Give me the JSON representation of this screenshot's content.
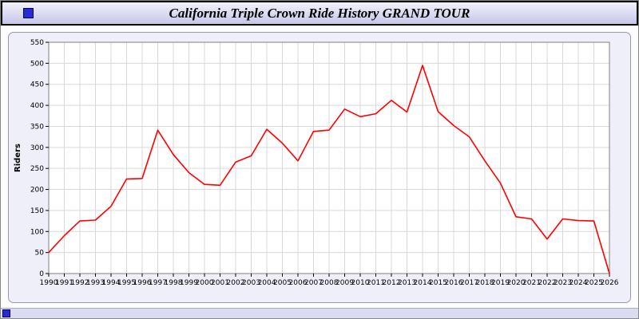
{
  "window": {
    "title": "California Triple Crown Ride History GRAND TOUR"
  },
  "colors": {
    "line": "#ff0000",
    "grid": "#d9d9d9",
    "plot_background": "#ffffff",
    "plot_border": "#808080",
    "panel_background": "#efeffa",
    "titlebar_accent": "#2a2ad0",
    "text": "#000000"
  },
  "chart_data": {
    "type": "line",
    "title": "California Triple Crown Ride History GRAND TOUR",
    "xlabel": "",
    "ylabel": "Riders",
    "ylim": [
      0,
      550
    ],
    "y_tick_step": 50,
    "grid": true,
    "legend": "none",
    "line_color": "#ff0000",
    "categories": [
      "1990",
      "1991",
      "1992",
      "1993",
      "1994",
      "1995",
      "1996",
      "1997",
      "1998",
      "1999",
      "2000",
      "2001",
      "2002",
      "2003",
      "2004",
      "2005",
      "2006",
      "2007",
      "2008",
      "2009",
      "2010",
      "2011",
      "2012",
      "2013",
      "2014",
      "2015",
      "2016",
      "2017",
      "2018",
      "2019",
      "2020",
      "2021",
      "2022",
      "2023",
      "2024",
      "2025",
      "2026"
    ],
    "values": [
      50,
      90,
      125,
      127,
      160,
      225,
      226,
      341,
      283,
      240,
      212,
      210,
      265,
      280,
      343,
      310,
      268,
      338,
      341,
      391,
      373,
      380,
      412,
      384,
      495,
      385,
      352,
      325,
      268,
      215,
      135,
      130,
      82,
      130,
      126,
      125,
      0
    ]
  }
}
